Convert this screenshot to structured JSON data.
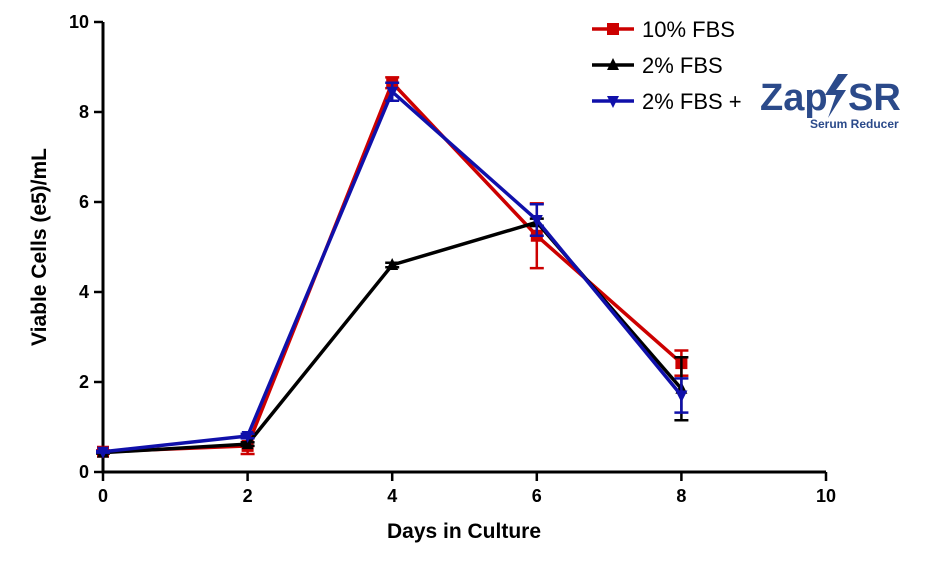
{
  "chart_data": {
    "type": "line",
    "title": "",
    "xlabel": "Days in Culture",
    "ylabel": "Viable Cells (e5)/mL",
    "xlim": [
      0,
      10
    ],
    "ylim": [
      0,
      10
    ],
    "xticks": [
      0,
      2,
      4,
      6,
      8,
      10
    ],
    "yticks": [
      0,
      2,
      4,
      6,
      8,
      10
    ],
    "grid": false,
    "legend_position": "top-right",
    "series": [
      {
        "name": "10% FBS",
        "color": "#cc0000",
        "marker": "square",
        "x": [
          0,
          2,
          4,
          6,
          8
        ],
        "y": [
          0.45,
          0.58,
          8.65,
          5.25,
          2.42
        ],
        "err": [
          0.03,
          0.18,
          0.12,
          0.72,
          0.28
        ]
      },
      {
        "name": "2% FBS",
        "color": "#000000",
        "marker": "triangle-up",
        "x": [
          0,
          2,
          4,
          6,
          8
        ],
        "y": [
          0.43,
          0.62,
          4.6,
          5.55,
          1.85
        ],
        "err": [
          0.02,
          0.04,
          0.05,
          0.08,
          0.7
        ]
      },
      {
        "name": "2% FBS +",
        "color": "#1010aa",
        "marker": "triangle-down",
        "x": [
          0,
          2,
          4,
          6,
          8
        ],
        "y": [
          0.45,
          0.8,
          8.45,
          5.6,
          1.7
        ],
        "err": [
          0.02,
          0.05,
          0.2,
          0.35,
          0.38
        ]
      }
    ]
  },
  "logo": {
    "text_left": "Zap",
    "text_right": "SR",
    "subtitle": "Serum Reducer",
    "color": "#2b4a8a"
  }
}
